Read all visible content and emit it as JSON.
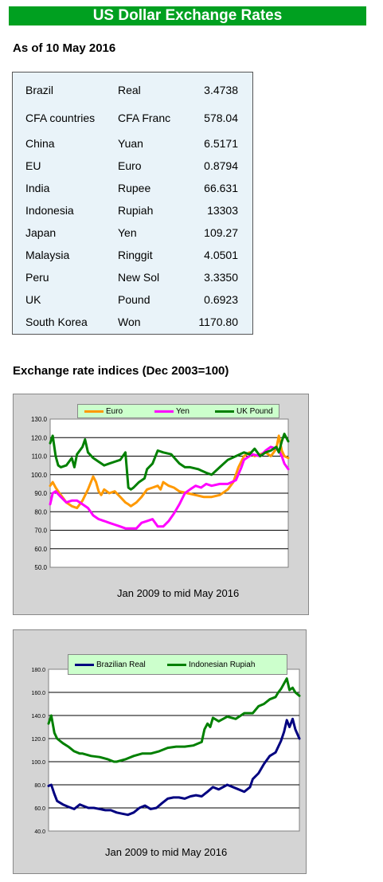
{
  "title": "US Dollar Exchange Rates",
  "as_of": "As of 10 May 2016",
  "rates": [
    {
      "country": "Brazil",
      "currency": "Real",
      "value": "3.4738"
    },
    {
      "country": "CFA countries",
      "currency": "CFA Franc",
      "value": "578.04"
    },
    {
      "country": "China",
      "currency": "Yuan",
      "value": "6.5171"
    },
    {
      "country": "EU",
      "currency": "Euro",
      "value": "0.8794"
    },
    {
      "country": "India",
      "currency": "Rupee",
      "value": "66.631"
    },
    {
      "country": "Indonesia",
      "currency": "Rupiah",
      "value": "13303"
    },
    {
      "country": "Japan",
      "currency": "Yen",
      "value": "109.27"
    },
    {
      "country": "Malaysia",
      "currency": "Ringgit",
      "value": "4.0501"
    },
    {
      "country": "Peru",
      "currency": "New Sol",
      "value": "3.3350"
    },
    {
      "country": "UK",
      "currency": "Pound",
      "value": "0.6923"
    },
    {
      "country": "South Korea",
      "currency": "Won",
      "value": "1170.80"
    }
  ],
  "indices_heading": "Exchange rate indices (Dec 2003=100)",
  "chart_data": [
    {
      "type": "line",
      "title": "",
      "xlabel": "Jan 2009 to mid May 2016",
      "ylabel": "",
      "ylim": [
        50,
        130
      ],
      "yticks": [
        "130.0",
        "120.0",
        "110.0",
        "100.0",
        "90.0",
        "80.0",
        "70.0",
        "60.0",
        "50.0"
      ],
      "grid": true,
      "legend": "top",
      "x_range": [
        2009.0,
        2016.37
      ],
      "series": [
        {
          "name": "Euro",
          "color": "#ff9900",
          "x": [
            2009.0,
            2009.08,
            2009.17,
            2009.25,
            2009.33,
            2009.42,
            2009.5,
            2009.67,
            2009.83,
            2010.0,
            2010.17,
            2010.33,
            2010.42,
            2010.5,
            2010.58,
            2010.67,
            2010.83,
            2011.0,
            2011.17,
            2011.33,
            2011.42,
            2011.5,
            2011.67,
            2011.83,
            2012.0,
            2012.17,
            2012.33,
            2012.42,
            2012.5,
            2012.67,
            2012.83,
            2013.0,
            2013.25,
            2013.5,
            2013.75,
            2014.0,
            2014.25,
            2014.5,
            2014.67,
            2014.83,
            2015.0,
            2015.08,
            2015.17,
            2015.33,
            2015.5,
            2015.67,
            2015.83,
            2015.92,
            2016.0,
            2016.08,
            2016.17,
            2016.25,
            2016.37
          ],
          "y": [
            94,
            96,
            93,
            91,
            89,
            87,
            85,
            83,
            82,
            86,
            92,
            99,
            96,
            91,
            89,
            92,
            90,
            91,
            88,
            85,
            84,
            83,
            85,
            88,
            92,
            93,
            94,
            92,
            96,
            94,
            93,
            91,
            90,
            89,
            88,
            88,
            89,
            92,
            96,
            104,
            110,
            111,
            112,
            110,
            111,
            112,
            110,
            112,
            114,
            121,
            113,
            110,
            109
          ]
        },
        {
          "name": "Yen",
          "color": "#ff00ff",
          "x": [
            2009.0,
            2009.08,
            2009.17,
            2009.33,
            2009.5,
            2009.67,
            2009.83,
            2010.0,
            2010.17,
            2010.33,
            2010.5,
            2010.67,
            2010.83,
            2011.0,
            2011.17,
            2011.33,
            2011.5,
            2011.67,
            2011.83,
            2012.0,
            2012.17,
            2012.33,
            2012.5,
            2012.67,
            2012.83,
            2013.0,
            2013.17,
            2013.33,
            2013.5,
            2013.67,
            2013.83,
            2014.0,
            2014.25,
            2014.5,
            2014.75,
            2014.92,
            2015.0,
            2015.25,
            2015.5,
            2015.67,
            2015.83,
            2016.0,
            2016.08,
            2016.17,
            2016.25,
            2016.37
          ],
          "y": [
            84,
            90,
            91,
            88,
            85,
            86,
            86,
            84,
            82,
            78,
            76,
            75,
            74,
            73,
            72,
            71,
            71,
            71,
            74,
            75,
            76,
            72,
            72,
            75,
            79,
            84,
            90,
            92,
            94,
            93,
            95,
            94,
            95,
            95,
            97,
            104,
            108,
            111,
            110,
            113,
            115,
            114,
            113,
            110,
            106,
            103
          ]
        },
        {
          "name": "UK Pound",
          "color": "#008000",
          "x": [
            2009.0,
            2009.08,
            2009.17,
            2009.25,
            2009.33,
            2009.5,
            2009.67,
            2009.75,
            2009.83,
            2010.0,
            2010.08,
            2010.17,
            2010.33,
            2010.5,
            2010.67,
            2010.83,
            2011.0,
            2011.17,
            2011.33,
            2011.42,
            2011.5,
            2011.58,
            2011.75,
            2011.92,
            2012.0,
            2012.17,
            2012.33,
            2012.5,
            2012.75,
            2013.0,
            2013.17,
            2013.33,
            2013.58,
            2013.83,
            2014.0,
            2014.25,
            2014.5,
            2014.75,
            2015.0,
            2015.17,
            2015.33,
            2015.5,
            2015.67,
            2015.83,
            2016.0,
            2016.08,
            2016.17,
            2016.25,
            2016.37
          ],
          "y": [
            117,
            121,
            110,
            105,
            104,
            105,
            109,
            104,
            111,
            115,
            119,
            112,
            109,
            107,
            105,
            106,
            107,
            108,
            112,
            93,
            92,
            93,
            96,
            98,
            103,
            106,
            113,
            112,
            111,
            106,
            104,
            104,
            103,
            101,
            100,
            104,
            108,
            110,
            112,
            111,
            114,
            110,
            112,
            113,
            115,
            112,
            118,
            122,
            118
          ]
        }
      ]
    },
    {
      "type": "line",
      "title": "",
      "xlabel": "Jan 2009 to mid May 2016",
      "ylabel": "",
      "ylim": [
        40,
        180
      ],
      "yticks": [
        "180.0",
        "160.0",
        "140.0",
        "120.0",
        "100.0",
        "80.0",
        "60.0",
        "40.0"
      ],
      "grid": true,
      "legend": "top",
      "x_range": [
        2009.0,
        2016.37
      ],
      "series": [
        {
          "name": "Brazilian Real",
          "color": "#000080",
          "x": [
            2009.0,
            2009.08,
            2009.17,
            2009.25,
            2009.42,
            2009.58,
            2009.75,
            2009.92,
            2010.0,
            2010.17,
            2010.33,
            2010.5,
            2010.67,
            2010.83,
            2011.0,
            2011.17,
            2011.33,
            2011.5,
            2011.67,
            2011.83,
            2012.0,
            2012.17,
            2012.33,
            2012.5,
            2012.67,
            2012.83,
            2013.0,
            2013.17,
            2013.33,
            2013.5,
            2013.67,
            2013.83,
            2014.0,
            2014.25,
            2014.5,
            2014.75,
            2014.92,
            2015.0,
            2015.17,
            2015.33,
            2015.5,
            2015.67,
            2015.83,
            2015.92,
            2016.0,
            2016.08,
            2016.17,
            2016.25,
            2016.37
          ],
          "y": [
            79,
            80,
            72,
            66,
            63,
            61,
            59,
            63,
            62,
            60,
            60,
            59,
            58,
            58,
            56,
            55,
            54,
            56,
            60,
            62,
            59,
            60,
            64,
            68,
            69,
            69,
            68,
            70,
            71,
            70,
            74,
            78,
            76,
            80,
            77,
            74,
            78,
            85,
            90,
            98,
            105,
            108,
            118,
            126,
            136,
            130,
            137,
            128,
            120
          ]
        },
        {
          "name": "Indonesian Rupiah",
          "color": "#008000",
          "x": [
            2009.0,
            2009.08,
            2009.17,
            2009.25,
            2009.42,
            2009.58,
            2009.75,
            2009.92,
            2010.0,
            2010.25,
            2010.5,
            2010.75,
            2010.92,
            2011.0,
            2011.25,
            2011.5,
            2011.75,
            2012.0,
            2012.25,
            2012.5,
            2012.75,
            2013.0,
            2013.25,
            2013.5,
            2013.58,
            2013.67,
            2013.75,
            2013.83,
            2014.0,
            2014.25,
            2014.5,
            2014.75,
            2015.0,
            2015.17,
            2015.33,
            2015.5,
            2015.67,
            2015.75,
            2015.83,
            2016.0,
            2016.08,
            2016.17,
            2016.25,
            2016.37
          ],
          "y": [
            133,
            140,
            125,
            120,
            116,
            113,
            109,
            107,
            107,
            105,
            104,
            102,
            100,
            100,
            102,
            105,
            107,
            107,
            109,
            112,
            113,
            113,
            114,
            117,
            128,
            133,
            130,
            138,
            135,
            139,
            137,
            142,
            142,
            148,
            150,
            154,
            156,
            160,
            163,
            172,
            162,
            164,
            160,
            157
          ]
        }
      ]
    }
  ]
}
